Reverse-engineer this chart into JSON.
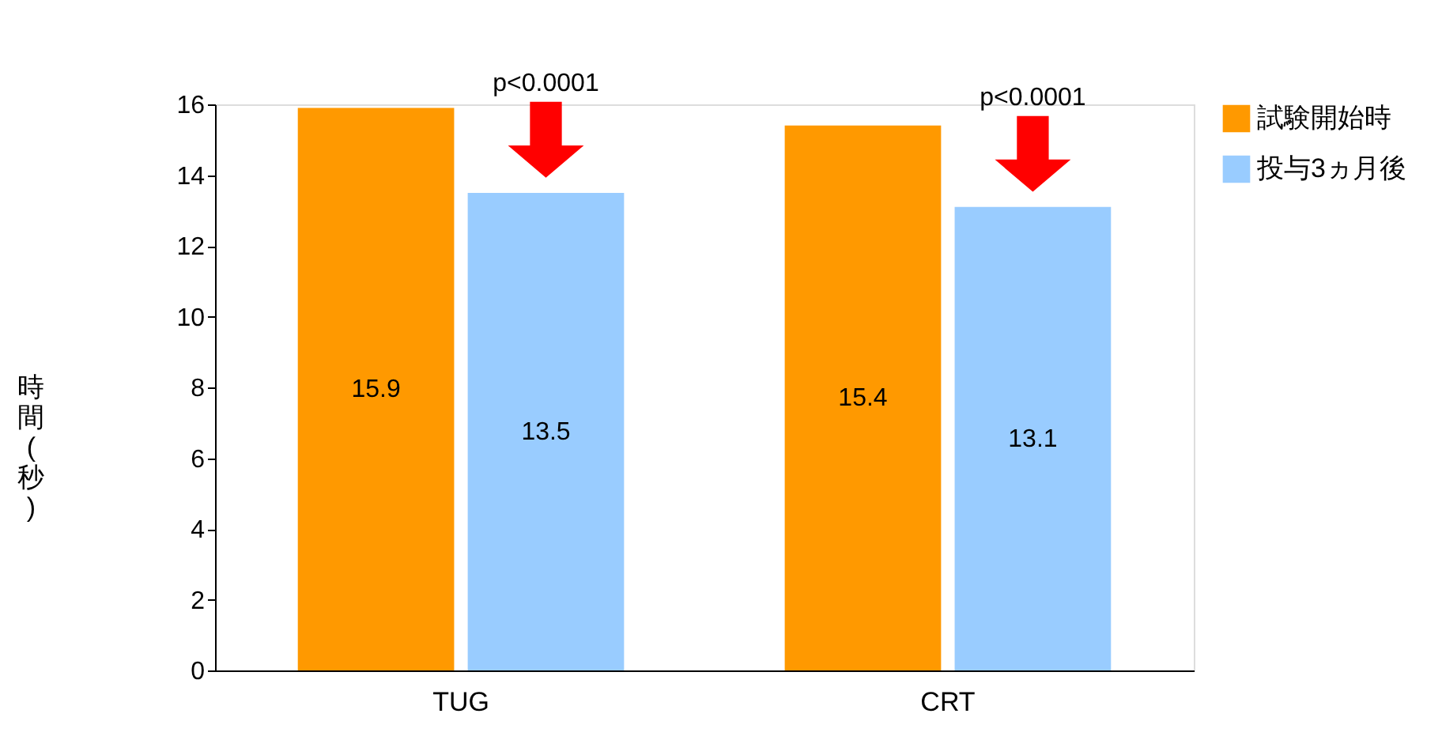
{
  "chart_data": {
    "type": "bar",
    "ylabel": "時間(秒)",
    "categories": [
      "TUG",
      "CRT"
    ],
    "series": [
      {
        "name": "試験開始時",
        "color": "#ff9900",
        "values": [
          15.9,
          15.4
        ]
      },
      {
        "name": "投与3ヵ月後",
        "color": "#99ccff",
        "values": [
          13.5,
          13.1
        ]
      }
    ],
    "ylim": [
      0,
      16
    ],
    "yticks": [
      0,
      2,
      4,
      6,
      8,
      10,
      12,
      14,
      16
    ],
    "grid": false,
    "legend": "right",
    "data_labels": true,
    "annotations": [
      "p<0.0001",
      "p<0.0001"
    ]
  }
}
